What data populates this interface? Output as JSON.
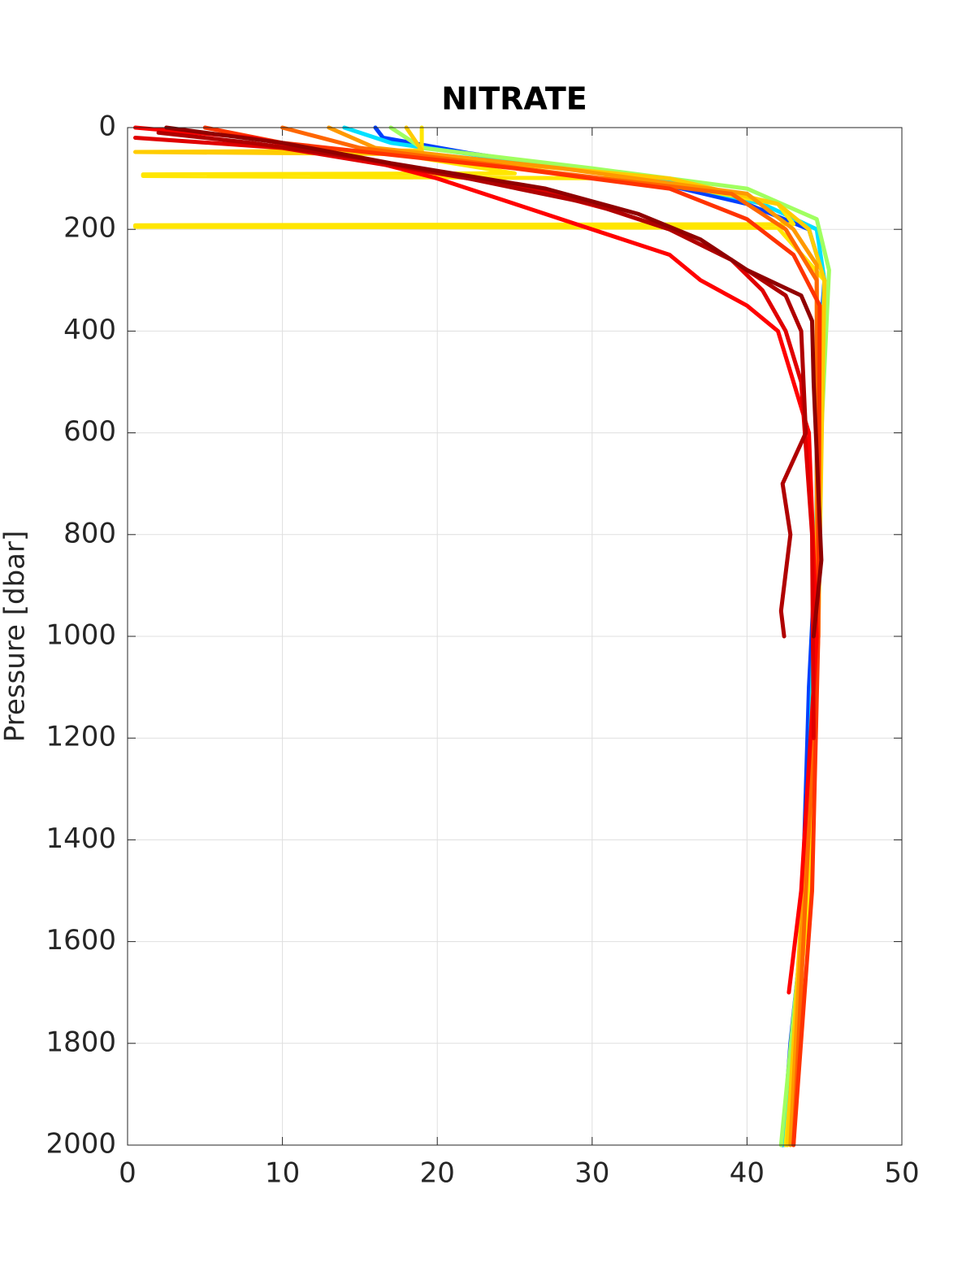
{
  "chart_data": {
    "type": "line",
    "title": "NITRATE",
    "y_label": "Pressure [dbar]",
    "xlim": [
      0,
      50
    ],
    "xticks": [
      0,
      10,
      20,
      30,
      40,
      50
    ],
    "ylim": [
      0,
      2000
    ],
    "yticks": [
      0,
      200,
      400,
      600,
      800,
      1000,
      1200,
      1400,
      1600,
      1800,
      2000
    ],
    "y_reversed": true,
    "grid": true,
    "series": [
      {
        "color": "#0040ff",
        "y": [
          0,
          20,
          50,
          100,
          150,
          200,
          300,
          500,
          800,
          1100,
          1300,
          1600,
          1800,
          2000
        ],
        "x": [
          16,
          16.5,
          22,
          33,
          40,
          44,
          45,
          44.5,
          44.5,
          44,
          43.8,
          43.5,
          42.8,
          42.3
        ]
      },
      {
        "color": "#00e0ff",
        "y": [
          0,
          30,
          60,
          100,
          150,
          200,
          300,
          600,
          1000,
          1400,
          1800,
          2000
        ],
        "x": [
          14,
          17,
          24,
          34,
          41,
          44.5,
          45,
          44.6,
          44.3,
          43.9,
          43,
          42.4
        ]
      },
      {
        "color": "#a0ff60",
        "y": [
          0,
          40,
          80,
          120,
          180,
          280,
          600,
          1000,
          1500,
          2000
        ],
        "x": [
          17,
          19,
          30,
          40,
          44.5,
          45.3,
          44.8,
          44.4,
          43.8,
          42.2
        ]
      },
      {
        "color": "#ffe600",
        "y": [
          0,
          60,
          90,
          92,
          95,
          100,
          150,
          190,
          192,
          195,
          197,
          300,
          600,
          1000,
          1500,
          2000
        ],
        "x": [
          19,
          19,
          25,
          1,
          1,
          33,
          42,
          43,
          0.5,
          0.5,
          42,
          45,
          44.8,
          44.6,
          44,
          42.5
        ]
      },
      {
        "color": "#ffcc00",
        "y": [
          0,
          45,
          48,
          52,
          100,
          150,
          200,
          300,
          1000,
          2000
        ],
        "x": [
          18,
          19,
          0.5,
          18,
          35,
          42,
          44,
          45,
          44.6,
          42.6
        ]
      },
      {
        "color": "#ff9900",
        "y": [
          0,
          40,
          80,
          130,
          200,
          270,
          400,
          1000,
          2000
        ],
        "x": [
          13,
          16,
          28,
          40,
          43,
          44.5,
          44.5,
          44.5,
          42.8
        ]
      },
      {
        "color": "#ff6600",
        "y": [
          0,
          40,
          90,
          130,
          200,
          300,
          1000,
          2000
        ],
        "x": [
          10,
          15,
          28,
          39,
          42.5,
          44.5,
          44.6,
          43
        ]
      },
      {
        "color": "#ff3300",
        "y": [
          0,
          30,
          80,
          120,
          180,
          250,
          350,
          1000,
          1500,
          2000
        ],
        "x": [
          5,
          10,
          25,
          35,
          40,
          43,
          44.7,
          44.6,
          44.2,
          43
        ]
      },
      {
        "color": "#ff0000",
        "y": [
          0,
          20,
          60,
          100,
          150,
          200,
          250,
          300,
          350,
          400,
          500,
          600,
          1000,
          1500,
          1700
        ],
        "x": [
          0.5,
          8,
          15,
          20,
          25,
          30,
          35,
          37,
          40,
          42,
          43,
          44,
          44.5,
          43.5,
          42.7
        ]
      },
      {
        "color": "#e00000",
        "y": [
          20,
          40,
          80,
          120,
          160,
          200,
          260,
          320,
          400,
          500,
          800,
          1200
        ],
        "x": [
          0.5,
          10,
          18,
          26,
          31,
          35,
          39,
          41,
          42.5,
          43.5,
          44.2,
          44.3
        ]
      },
      {
        "color": "#b00000",
        "y": [
          10,
          30,
          60,
          100,
          150,
          200,
          260,
          330,
          400,
          600,
          700,
          800,
          950,
          1000
        ],
        "x": [
          2,
          8,
          15,
          22,
          30,
          35,
          39,
          42.5,
          43.5,
          43.8,
          42.3,
          42.8,
          42.2,
          42.4
        ]
      },
      {
        "color": "#900000",
        "y": [
          0,
          30,
          70,
          120,
          170,
          220,
          280,
          330,
          380,
          500,
          850,
          1000
        ],
        "x": [
          2.5,
          10,
          17,
          27,
          33,
          37,
          40,
          43.5,
          44.2,
          44.3,
          44.8,
          44.3
        ]
      }
    ]
  }
}
